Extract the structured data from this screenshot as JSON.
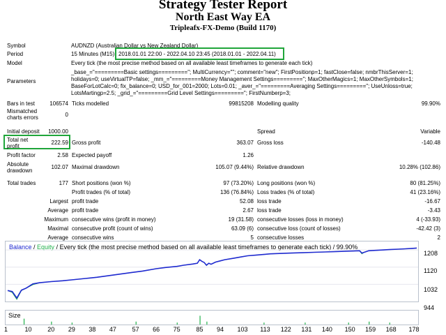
{
  "report": {
    "title": "Strategy Tester Report",
    "ea": "North East Way EA",
    "server": "Tripleafx-FX-Demo (Build 1170)"
  },
  "info": {
    "symbol_label": "Symbol",
    "symbol": "AUDNZD (Australian Dollar vs New Zealand Dollar)",
    "period_label": "Period",
    "period_prefix": "15 Minutes (M15)",
    "period_range": "2018.01.01 22:00 - 2022.04.10 23:45 (2018.01.01 - 2022.04.11)",
    "model_label": "Model",
    "model": "Every tick (the most precise method based on all available least timeframes to generate each tick)",
    "params_label": "Parameters",
    "params": [
      "_base_=\"=========Basic settings=========\"; MultiCurrency=\"\"; comment=\"new\"; FirstPositionp=1; fastClose=false; nmbrThisServer=1;",
      "holidays=0; useVirtualTP=false; _mm_=\"=========Money Management Settings=========\"; MaxOtherMagics=1; MaxOtherSymbols=1;",
      "BaseForLotCalc=0; fix_balance=0; USD_for_001=2000; Lots=0.01; _aver_=\"=========Averaging Settings=========\"; UseUnloss=true;",
      "LotsMartingp=2.5; _grid_=\"=========Grid Level Settings=========\"; FirstNumberp=3;"
    ]
  },
  "rows": {
    "bars_label": "Bars in test",
    "bars": "106574",
    "ticks_label": "Ticks modelled",
    "ticks": "99815208",
    "mq_label": "Modelling quality",
    "mq": "99.90%",
    "mis_label": "Mismatched charts errors",
    "mis": "0",
    "dep_label": "Initial deposit",
    "dep": "1000.00",
    "spread_label": "Spread",
    "spread": "Variable",
    "tnp_label": "Total net profit",
    "tnp": "222.59",
    "gp_label": "Gross profit",
    "gp": "363.07",
    "gl_label": "Gross loss",
    "gl": "-140.48",
    "pf_label": "Profit factor",
    "pf": "2.58",
    "ep_label": "Expected payoff",
    "ep": "1.26",
    "ad_label": "Absolute drawdown",
    "ad": "102.07",
    "maxdd_label": "Maximal drawdown",
    "maxdd": "105.07 (9.44%)",
    "reldd_label": "Relative drawdown",
    "reldd": "10.28% (102.86)",
    "tt_label": "Total trades",
    "tt": "177",
    "sp_label": "Short positions (won %)",
    "sp": "97 (73.20%)",
    "lp_label": "Long positions (won %)",
    "lp": "80 (81.25%)",
    "pt_label": "Profit trades (% of total)",
    "pt": "136 (76.84%)",
    "lt_label": "Loss trades (% of total)",
    "lt": "41 (23.16%)",
    "largest": "Largest",
    "lpt_label": "profit trade",
    "lpt": "52.08",
    "llt_label": "loss trade",
    "llt": "-16.67",
    "average": "Average",
    "apt_label": "profit trade",
    "apt": "2.67",
    "alt_label": "loss trade",
    "alt": "-3.43",
    "maximum": "Maximum",
    "mcw_label": "consecutive wins (profit in money)",
    "mcw": "19 (31.58)",
    "mcl_label": "consecutive losses (loss in money)",
    "mcl": "4 (-33.93)",
    "maximal": "Maximal",
    "mcp_label": "consecutive profit (count of wins)",
    "mcp": "63.09 (6)",
    "mcll_label": "consecutive loss (count of losses)",
    "mcll": "-42.42 (3)",
    "average2": "Average",
    "acw_label": "consecutive wins",
    "acw": "5",
    "acl_label": "consecutive losses",
    "acl": "2"
  },
  "chart_legend": {
    "balance": "Balance",
    "slash": " / ",
    "equity": "Equity",
    "rest": " / Every tick (the most precise method based on all available least timeframes to generate each tick) / 99.90%"
  },
  "colors": {
    "balance": "#1f2ad0",
    "equity": "#22b14c",
    "highlight": "#1fa53a"
  },
  "chart_data": {
    "type": "line",
    "y_ticks": [
      "1208",
      "1120",
      "1032",
      "944"
    ],
    "x_ticks": [
      "1",
      "10",
      "20",
      "29",
      "38",
      "47",
      "57",
      "66",
      "75",
      "85",
      "94",
      "103",
      "113",
      "122",
      "131",
      "140",
      "150",
      "159",
      "168",
      "178"
    ],
    "series": [
      {
        "name": "Balance",
        "x": [
          1,
          3,
          5,
          7,
          9,
          12,
          15,
          20,
          25,
          29,
          35,
          40,
          45,
          50,
          55,
          60,
          66,
          70,
          75,
          78,
          82,
          84,
          85,
          86,
          87,
          88,
          89,
          90,
          92,
          94,
          96,
          100,
          103,
          106,
          110,
          113,
          116,
          120,
          125,
          130,
          135,
          140,
          145,
          150,
          155,
          156,
          157,
          158,
          159,
          162,
          165,
          168,
          172,
          175,
          178,
          180
        ],
        "y": [
          1000,
          995,
          962,
          1002,
          1012,
          1034,
          1040,
          1046,
          1050,
          1055,
          1062,
          1068,
          1076,
          1084,
          1092,
          1100,
          1112,
          1118,
          1124,
          1130,
          1136,
          1140,
          1158,
          1150,
          1144,
          1130,
          1140,
          1135,
          1146,
          1152,
          1158,
          1166,
          1172,
          1178,
          1182,
          1185,
          1188,
          1190,
          1192,
          1194,
          1196,
          1198,
          1200,
          1202,
          1204,
          1192,
          1196,
          1200,
          1204,
          1206,
          1208,
          1210,
          1212,
          1214,
          1216,
          1218
        ]
      },
      {
        "name": "Equity",
        "x": [
          1,
          3,
          5,
          7,
          9,
          12,
          15,
          20,
          25,
          29,
          35,
          40,
          45,
          50,
          55,
          60,
          66,
          70,
          75,
          78,
          82,
          84,
          85,
          86,
          87,
          88,
          89,
          90,
          92,
          94,
          96,
          100,
          103,
          106,
          110,
          113,
          116,
          120,
          125,
          130,
          135,
          140,
          145,
          150,
          155,
          156,
          157,
          158,
          159,
          162,
          165,
          168,
          172,
          175,
          178,
          180
        ],
        "y": [
          1000,
          990,
          955,
          1000,
          1012,
          1030,
          1040,
          1046,
          1050,
          1055,
          1062,
          1068,
          1076,
          1084,
          1092,
          1100,
          1112,
          1118,
          1124,
          1130,
          1136,
          1140,
          1158,
          1150,
          1144,
          1128,
          1140,
          1135,
          1146,
          1152,
          1158,
          1166,
          1172,
          1178,
          1182,
          1185,
          1188,
          1190,
          1192,
          1194,
          1196,
          1198,
          1200,
          1202,
          1204,
          1188,
          1196,
          1200,
          1204,
          1206,
          1208,
          1210,
          1212,
          1214,
          1216,
          1218
        ]
      }
    ],
    "size_label": "Size",
    "size_bars": [
      {
        "x": 8,
        "h": 0.6
      },
      {
        "x": 20,
        "h": 0.3
      },
      {
        "x": 29,
        "h": 0.2
      },
      {
        "x": 57,
        "h": 0.3
      },
      {
        "x": 75,
        "h": 0.2
      },
      {
        "x": 85,
        "h": 0.9
      },
      {
        "x": 88,
        "h": 0.3
      },
      {
        "x": 113,
        "h": 0.2
      },
      {
        "x": 131,
        "h": 0.2
      },
      {
        "x": 150,
        "h": 0.2
      },
      {
        "x": 159,
        "h": 0.3
      },
      {
        "x": 168,
        "h": 0.2
      }
    ]
  }
}
